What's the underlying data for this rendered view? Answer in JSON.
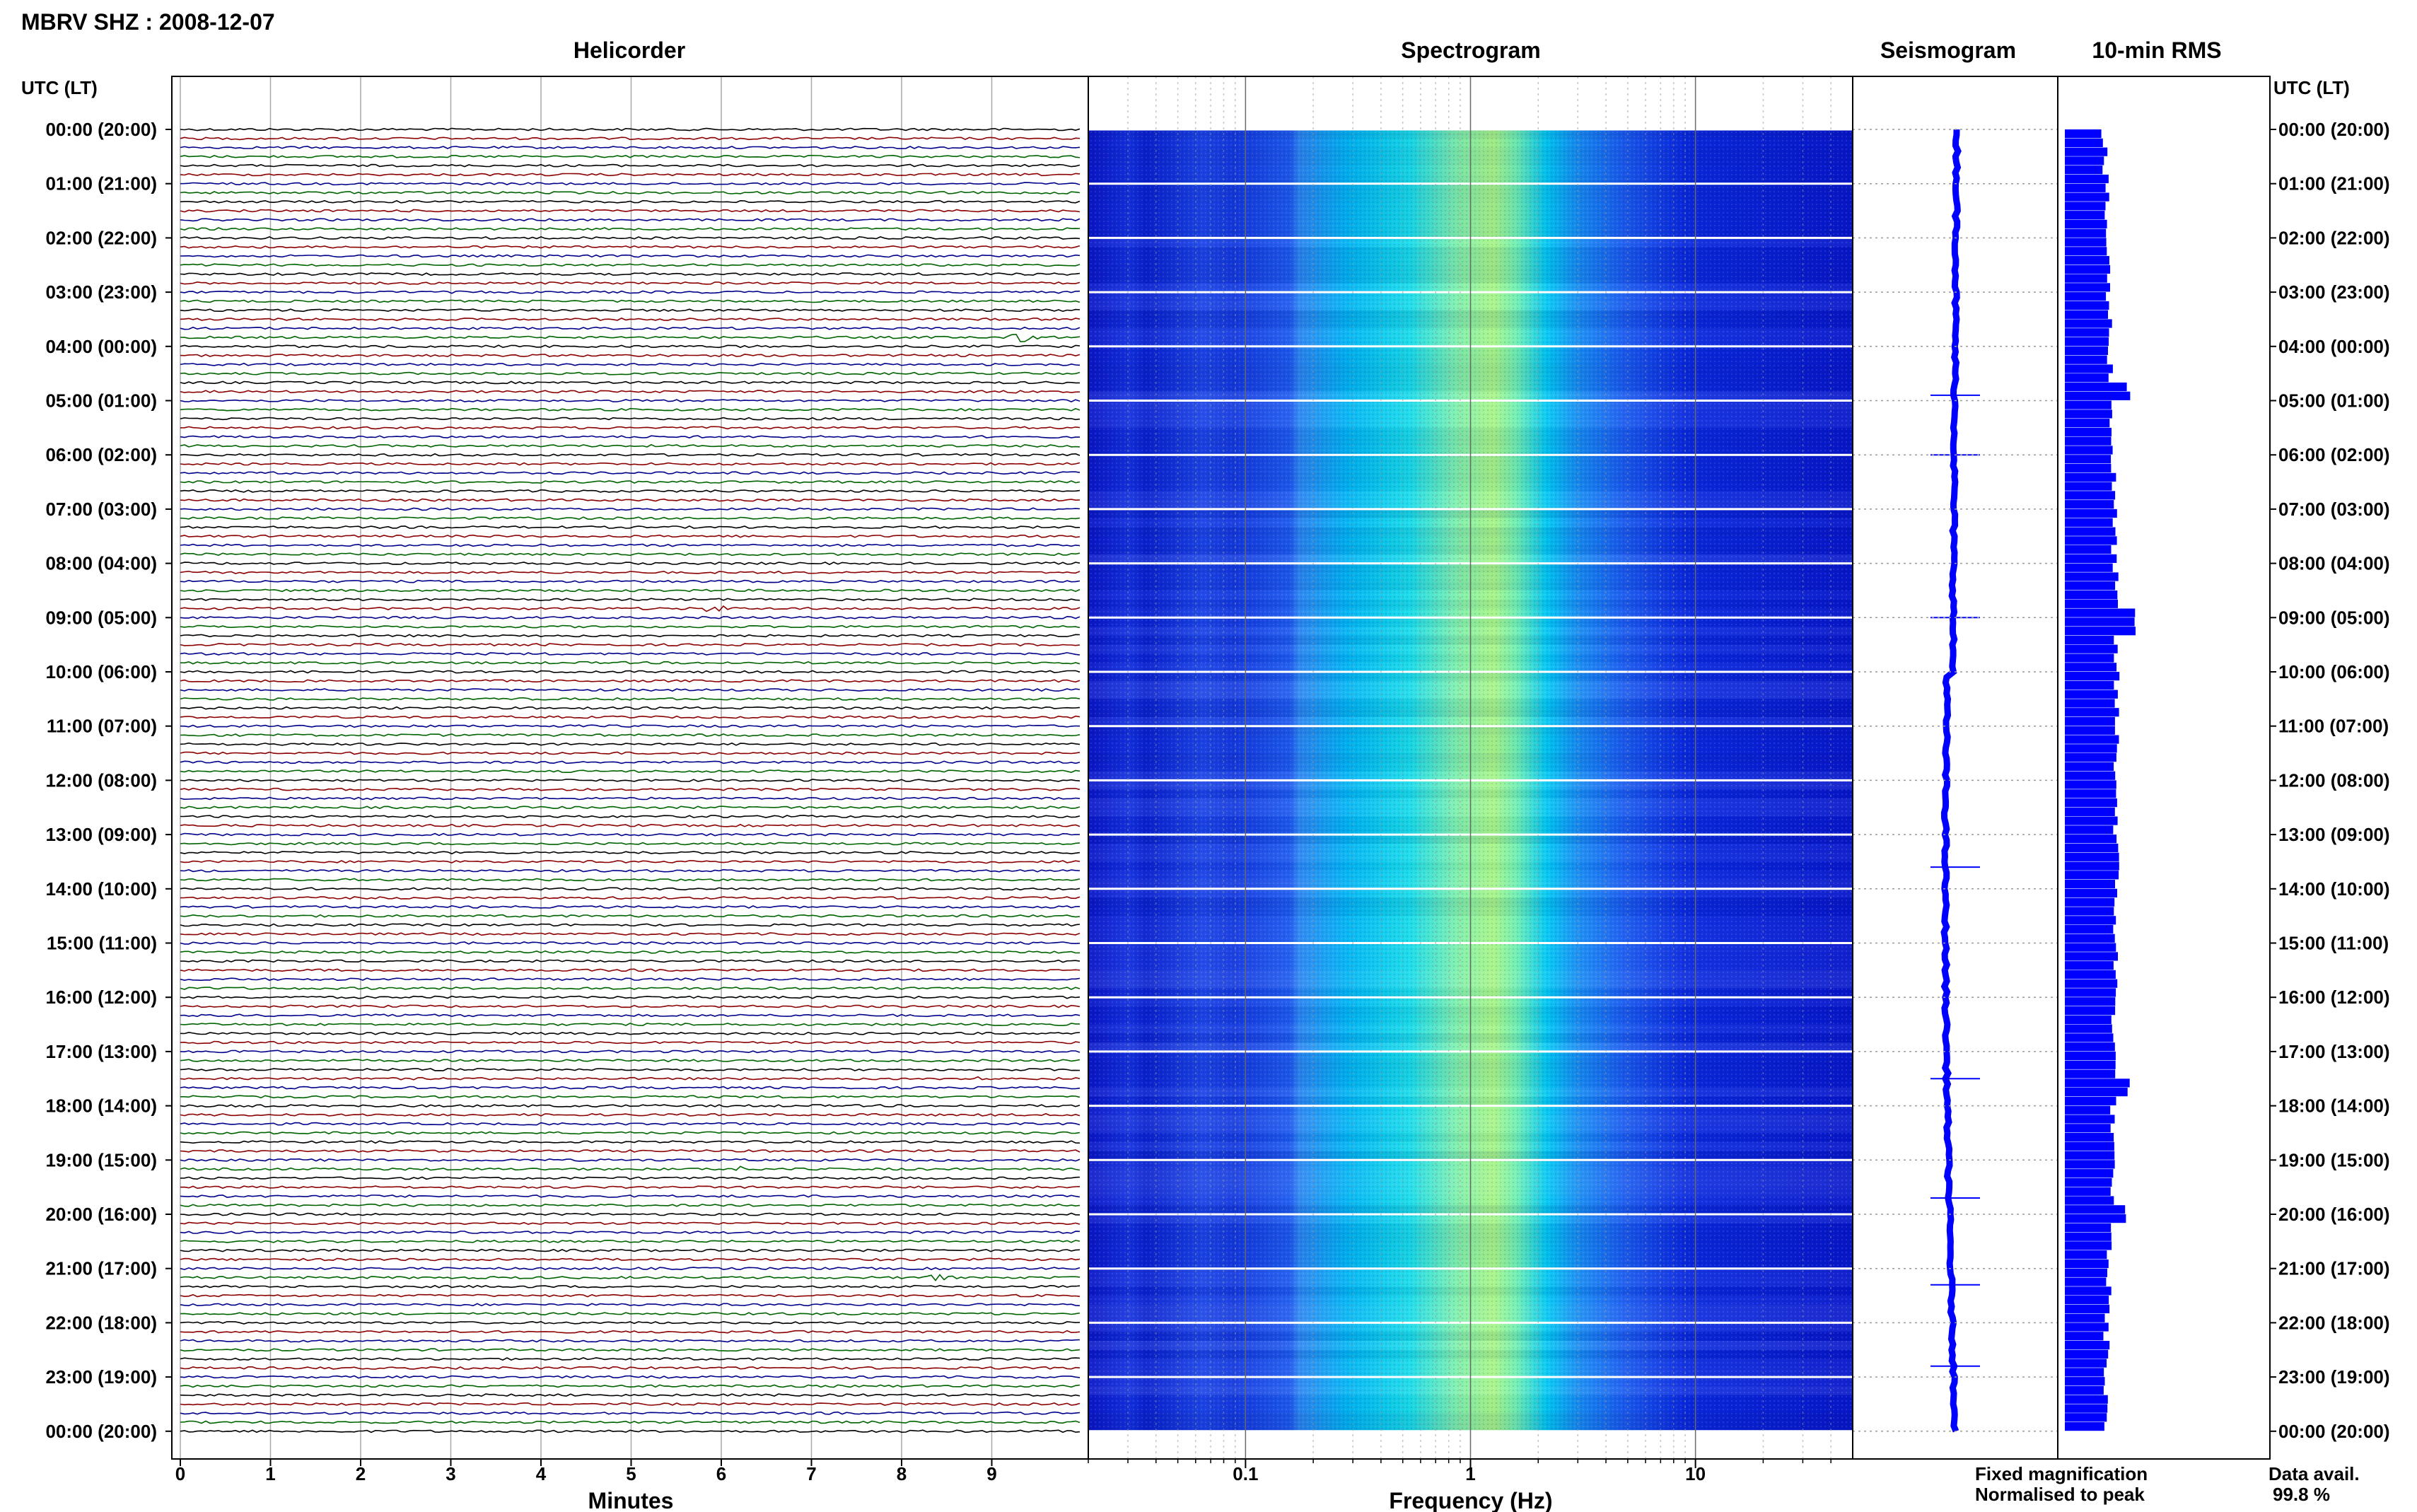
{
  "header": {
    "title": "MBRV SHZ : 2008-12-07"
  },
  "panels": {
    "helicorder": "Helicorder",
    "spectrogram": "Spectrogram",
    "seismogram": "Seismogram",
    "rms": "10-min RMS"
  },
  "axis": {
    "left_label": "UTC (LT)",
    "right_label": "UTC (LT)",
    "heli_xlabel": "Minutes",
    "spec_xlabel": "Frequency (Hz)"
  },
  "legend": {
    "fixed": "Fixed magnification",
    "normalised": "Normalised to peak",
    "fixed_color": "#0000ff",
    "normalised_color": "#ff0000"
  },
  "data_avail": {
    "label": "Data avail.",
    "value": "99.8 %"
  },
  "colors": {
    "trace_cycle": [
      "#000000",
      "#8b0000",
      "#00008b",
      "#006400"
    ],
    "spectro_low": "#0a1fd6",
    "spectro_mid": "#00c8ff",
    "spectro_peak": "#b8ff6a",
    "seismo": "#0000ff",
    "rms": "#0000ff"
  },
  "chart_data": [
    {
      "type": "line",
      "name": "helicorder",
      "x_ticks": [
        "0",
        "1",
        "2",
        "3",
        "4",
        "5",
        "6",
        "7",
        "8",
        "9"
      ],
      "xlim": [
        0,
        10
      ],
      "xlabel": "Minutes",
      "rows_per_hour": 6,
      "hour_labels": [
        "00:00 (20:00)",
        "01:00 (21:00)",
        "02:00 (22:00)",
        "03:00 (23:00)",
        "04:00 (00:00)",
        "05:00 (01:00)",
        "06:00 (02:00)",
        "07:00 (03:00)",
        "08:00 (04:00)",
        "09:00 (05:00)",
        "10:00 (06:00)",
        "11:00 (07:00)",
        "12:00 (08:00)",
        "13:00 (09:00)",
        "14:00 (10:00)",
        "15:00 (11:00)",
        "16:00 (12:00)",
        "17:00 (13:00)",
        "18:00 (14:00)",
        "19:00 (15:00)",
        "20:00 (16:00)",
        "21:00 (17:00)",
        "22:00 (18:00)",
        "23:00 (19:00)",
        "00:00 (20:00)"
      ],
      "events": [
        {
          "row": 23,
          "minute": 9.3,
          "amp": 9
        },
        {
          "row": 29,
          "minute": 9.3,
          "amp": 4
        },
        {
          "row": 53,
          "minute": 5.9,
          "amp": 6
        },
        {
          "row": 81,
          "minute": 9.0,
          "amp": 3
        },
        {
          "row": 105,
          "minute": 8.7,
          "amp": 6
        },
        {
          "row": 115,
          "minute": 6.2,
          "amp": 5
        },
        {
          "row": 127,
          "minute": 8.3,
          "amp": 7
        }
      ]
    },
    {
      "type": "heatmap",
      "name": "spectrogram",
      "x_scale": "log",
      "xlim": [
        0.02,
        50
      ],
      "x_ticks": [
        0.1,
        1,
        10
      ],
      "x_tick_labels": [
        "0.1",
        "1",
        "10"
      ],
      "xlabel": "Frequency (Hz)",
      "peak_frequency_hz": 0.9
    },
    {
      "type": "line",
      "name": "seismogram",
      "spikes_hour": [
        4.9,
        6.0,
        9.0,
        13.6,
        17.5,
        19.7,
        21.3,
        22.8
      ]
    },
    {
      "type": "bar",
      "name": "rms",
      "orientation": "horizontal",
      "spikes_hour": [
        4.75,
        9.0,
        17.6,
        19.9
      ]
    }
  ]
}
